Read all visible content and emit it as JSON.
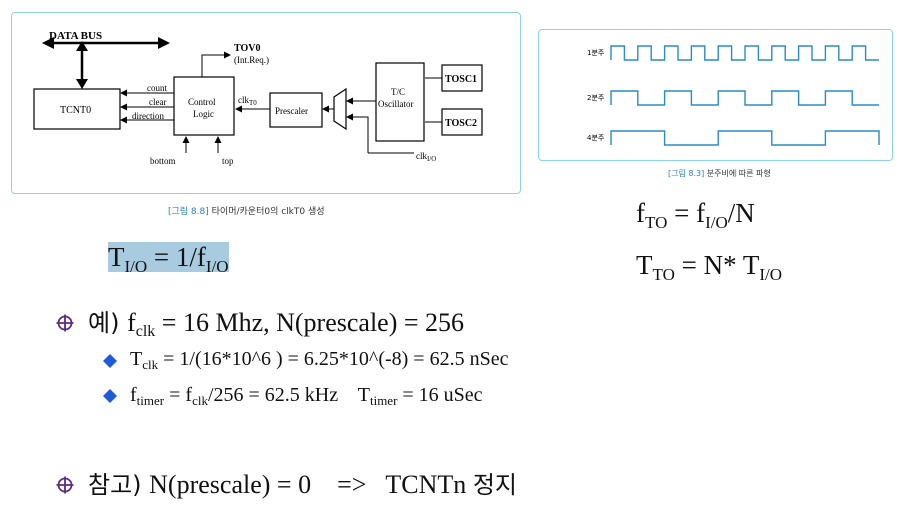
{
  "fig1": {
    "data_bus": "DATA BUS",
    "tov0": "TOV0",
    "int_req": "(Int.Req.)",
    "tcnt0": "TCNT0",
    "count": "count",
    "clear": "clear",
    "direction": "direction",
    "control_logic_1": "Control",
    "control_logic_2": "Logic",
    "clk_t0_main": "clk",
    "clk_t0_sub": "T0",
    "prescaler": "Prescaler",
    "tc_osc_1": "T/C",
    "tc_osc_2": "Oscillator",
    "tosc1": "TOSC1",
    "tosc2": "TOSC2",
    "bottom": "bottom",
    "top": "top",
    "clk_io_main": "clk",
    "clk_io_sub": "I/O",
    "caption_tag": "[그림 8.8]",
    "caption_text": "타이머/카운터0의 clkT0 생성"
  },
  "fig2": {
    "label_1": "1분주",
    "label_2": "2분주",
    "label_4": "4분주",
    "caption_tag": "[그림 8.3]",
    "caption_text": "분주비에 따른 파형",
    "waves": [
      {
        "division": 1,
        "high_pulses": 10
      },
      {
        "division": 2,
        "high_pulses": 5
      },
      {
        "division": 4,
        "high_pulses": 3
      }
    ]
  },
  "eq_fto": {
    "f": "f",
    "sub1": "TO",
    "mid": " = f",
    "sub2": "I/O",
    "tail": "/N"
  },
  "eq_tto": {
    "t": "T",
    "sub1": "TO",
    "mid": " = N* T",
    "sub2": "I/O"
  },
  "eq_tio": {
    "t": "T",
    "sub1": "I/O",
    "mid": " = 1/f",
    "sub2": "I/O"
  },
  "bullet1": {
    "prefix": "예) ",
    "f": "f",
    "sub": "clk",
    "rest": " = 16 Mhz,  N(prescale) = 256"
  },
  "sub1": {
    "t": "T",
    "sub": "clk",
    "rest": " = 1/(16*10^6 ) = 6.25*10^(-8) = 62.5 nSec"
  },
  "sub2": {
    "f1": "f",
    "sub1": "timer",
    "mid1": " = f",
    "sub2": "clk",
    "mid2": "/256 = 62.5 kHz    T",
    "sub3": "timer",
    "rest": " = 16 uSec"
  },
  "bullet2": {
    "text_ko": "참고) ",
    "text": "N(prescale) = 0    =>   TCNTn ",
    "text_ko2": "정지"
  }
}
